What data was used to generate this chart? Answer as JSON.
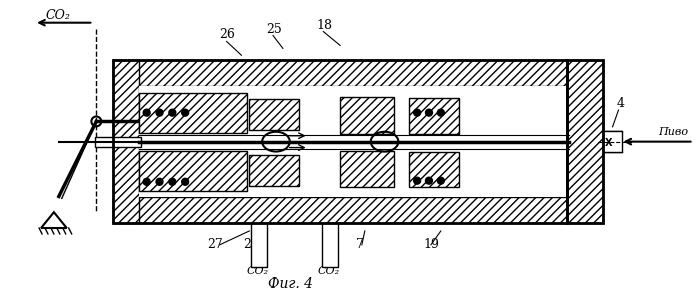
{
  "background": "#ffffff",
  "fig_width": 7.0,
  "fig_height": 2.91,
  "dpi": 100,
  "labels": {
    "co2_top": "CO₂",
    "co2_bottom_left": "CO₂",
    "co2_bottom_right": "CO₂",
    "pivo": "Пиво",
    "fig_label": "Фиг. 4",
    "n26": "26",
    "n25": "25",
    "n18": "18",
    "n4": "4",
    "n27": "27",
    "n2": "2",
    "n7": "7",
    "n19": "19"
  }
}
